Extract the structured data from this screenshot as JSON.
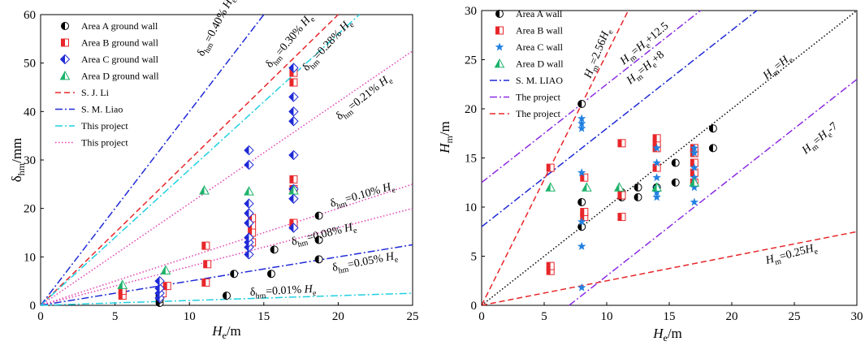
{
  "chart_data": [
    {
      "type": "scatter",
      "xlim": [
        0,
        25
      ],
      "ylim": [
        0,
        60
      ],
      "xticks": [
        0,
        5,
        10,
        15,
        20,
        25
      ],
      "yticks": [
        0,
        10,
        20,
        30,
        40,
        50,
        60
      ],
      "xlabel": {
        "main": "H",
        "sub": "e",
        "suffix": "/m"
      },
      "ylabel": {
        "main": "δ",
        "sub": "hm",
        "suffix": "/mm"
      },
      "series": [
        {
          "name": "Area A ground wall",
          "marker": "halfcircle",
          "color": "#000000",
          "points": [
            [
              8,
              0.5
            ],
            [
              8,
              1.2
            ],
            [
              8,
              2
            ],
            [
              12.5,
              2
            ],
            [
              13,
              6.5
            ],
            [
              15.5,
              6.5
            ],
            [
              15.7,
              11.5
            ],
            [
              18.7,
              9.5
            ],
            [
              18.7,
              13.5
            ],
            [
              18.7,
              18.5
            ]
          ]
        },
        {
          "name": "Area B ground wall",
          "marker": "halfsquare",
          "color": "#e8262a",
          "points": [
            [
              5.5,
              2
            ],
            [
              5.5,
              3
            ],
            [
              8.2,
              2.5
            ],
            [
              8.5,
              4
            ],
            [
              11.1,
              4.7
            ],
            [
              11.2,
              8.5
            ],
            [
              11.1,
              12.3
            ],
            [
              14.2,
              13
            ],
            [
              14.2,
              15
            ],
            [
              14.2,
              16.5
            ],
            [
              14.2,
              18
            ],
            [
              17,
              16.5
            ],
            [
              17,
              17
            ],
            [
              17,
              24
            ],
            [
              17,
              26
            ],
            [
              17,
              46
            ],
            [
              17,
              48
            ]
          ]
        },
        {
          "name": "Area C ground wall",
          "marker": "halfdiamond",
          "color": "#1f2ad6",
          "points": [
            [
              8,
              1.5
            ],
            [
              8,
              2.5
            ],
            [
              8,
              3.5
            ],
            [
              8,
              5
            ],
            [
              14,
              10.5
            ],
            [
              14,
              12
            ],
            [
              14,
              13
            ],
            [
              14,
              14
            ],
            [
              14,
              17
            ],
            [
              14,
              19
            ],
            [
              14,
              21
            ],
            [
              14,
              29
            ],
            [
              14,
              32
            ],
            [
              17,
              16
            ],
            [
              17,
              22
            ],
            [
              17,
              24
            ],
            [
              17,
              31
            ],
            [
              17,
              38
            ],
            [
              17,
              40
            ],
            [
              17,
              43
            ],
            [
              17,
              49
            ]
          ]
        },
        {
          "name": "Area D ground wall",
          "marker": "halftriangle",
          "color": "#1db36b",
          "points": [
            [
              5.5,
              4.2
            ],
            [
              8.4,
              7.2
            ],
            [
              11,
              23.7
            ],
            [
              14,
              23.5
            ],
            [
              17,
              23.7
            ]
          ]
        }
      ],
      "lines": [
        {
          "name": "S. J. Li",
          "style": "dashed",
          "color": "#e8262a",
          "slope": 3.0,
          "in_legend": true
        },
        {
          "name": "S. M. Liao",
          "style": "dashdot",
          "color": "#1f2ad6",
          "slope": 4.0,
          "in_legend": true
        },
        {
          "name": "This project",
          "style": "dashdot",
          "color": "#20d0e0",
          "slope": 2.8,
          "in_legend": true
        },
        {
          "name": "This project",
          "style": "dotted",
          "color": "#e040b0",
          "slope": 2.1,
          "in_legend": true
        },
        {
          "name": "",
          "style": "dotted",
          "color": "#e040b0",
          "slope": 1.0,
          "in_legend": false
        },
        {
          "name": "",
          "style": "dotted",
          "color": "#e040b0",
          "slope": 0.8,
          "in_legend": false
        },
        {
          "name": "",
          "style": "dashdot",
          "color": "#1f2ad6",
          "slope": 0.5,
          "in_legend": false
        },
        {
          "name": "",
          "style": "dashdot",
          "color": "#20d0e0",
          "slope": 0.1,
          "in_legend": false
        }
      ],
      "annotations": [
        {
          "pre": "δ",
          "sub": "hm",
          "mid": "=0.40% ",
          "var": "H",
          "vsub": "e",
          "post": ""
        },
        {
          "pre": "δ",
          "sub": "hm",
          "mid": "=0.30% ",
          "var": "H",
          "vsub": "e",
          "post": ""
        },
        {
          "pre": "δ",
          "sub": "hm",
          "mid": "=0.28% ",
          "var": "H",
          "vsub": "e",
          "post": ""
        },
        {
          "pre": "δ",
          "sub": "hm",
          "mid": "=0.21% ",
          "var": "H",
          "vsub": "e",
          "post": ""
        },
        {
          "pre": "δ",
          "sub": "hm",
          "mid": "=0.10% ",
          "var": "H",
          "vsub": "e",
          "post": ""
        },
        {
          "pre": "δ",
          "sub": "hm",
          "mid": "=0.08% ",
          "var": "H",
          "vsub": "e",
          "post": ""
        },
        {
          "pre": "δ",
          "sub": "hm",
          "mid": "=0.05% ",
          "var": "H",
          "vsub": "e",
          "post": ""
        },
        {
          "pre": "δ",
          "sub": "hm",
          "mid": "=0.01% ",
          "var": "H",
          "vsub": "e",
          "post": ""
        }
      ]
    },
    {
      "type": "scatter",
      "xlim": [
        0,
        30
      ],
      "ylim": [
        0,
        30
      ],
      "xticks": [
        0,
        5,
        10,
        15,
        20,
        25,
        30
      ],
      "yticks": [
        0,
        5,
        10,
        15,
        20,
        25,
        30
      ],
      "xlabel": {
        "main": "H",
        "sub": "e",
        "suffix": "/m"
      },
      "ylabel": {
        "main": "H",
        "sub": "m",
        "suffix": "/m"
      },
      "series": [
        {
          "name": "Area A wall",
          "marker": "halfcircle",
          "color": "#000000",
          "points": [
            [
              8,
              8
            ],
            [
              8,
              10.5
            ],
            [
              8,
              20.5
            ],
            [
              11.2,
              11
            ],
            [
              11.2,
              11.5
            ],
            [
              12.5,
              11
            ],
            [
              12.5,
              12
            ],
            [
              14,
              12
            ],
            [
              15.5,
              12.5
            ],
            [
              15.5,
              14.5
            ],
            [
              18.5,
              16
            ],
            [
              18.5,
              18
            ]
          ]
        },
        {
          "name": "Area B wall",
          "marker": "halfsquare",
          "color": "#e8262a",
          "points": [
            [
              5.5,
              3.5
            ],
            [
              5.5,
              4
            ],
            [
              5.5,
              14
            ],
            [
              8.2,
              9
            ],
            [
              8.2,
              9.5
            ],
            [
              8.2,
              13
            ],
            [
              11.2,
              9
            ],
            [
              11.2,
              11.2
            ],
            [
              11.2,
              16.5
            ],
            [
              14,
              14
            ],
            [
              14,
              16
            ],
            [
              14,
              16.5
            ],
            [
              14,
              17
            ],
            [
              17,
              12.5
            ],
            [
              17,
              13.5
            ],
            [
              17,
              14.5
            ],
            [
              17,
              15.5
            ],
            [
              17,
              16
            ]
          ]
        },
        {
          "name": "Area C wall",
          "marker": "star",
          "color": "#2280e0",
          "points": [
            [
              8,
              1.8
            ],
            [
              8,
              6
            ],
            [
              8,
              8.5
            ],
            [
              8,
              13.5
            ],
            [
              8,
              18
            ],
            [
              8,
              18.5
            ],
            [
              8,
              19
            ],
            [
              14,
              11
            ],
            [
              14,
              11.5
            ],
            [
              14,
              12
            ],
            [
              14,
              13
            ],
            [
              14,
              14.5
            ],
            [
              14,
              16
            ],
            [
              17,
              10.5
            ],
            [
              17,
              12
            ],
            [
              17,
              13
            ],
            [
              17,
              14
            ],
            [
              17,
              15.5
            ],
            [
              17,
              16
            ]
          ]
        },
        {
          "name": "Area D wall",
          "marker": "halftriangle",
          "color": "#1db36b",
          "points": [
            [
              5.5,
              12
            ],
            [
              8.4,
              12
            ],
            [
              11,
              12
            ],
            [
              14,
              12
            ],
            [
              17,
              12.5
            ]
          ]
        }
      ],
      "lines": [
        {
          "name": "S. M. LIAO",
          "style": "dashdot",
          "color": "#1f2ad6",
          "expr": [
            1,
            8
          ],
          "in_legend": true
        },
        {
          "name": "The project",
          "style": "dashdot",
          "color": "#8a2be2",
          "expr": [
            1,
            12.5
          ],
          "in_legend": true
        },
        {
          "name": "The project",
          "style": "dashed",
          "color": "#e8262a",
          "expr": [
            2.56,
            0
          ],
          "in_legend": true
        },
        {
          "name": "",
          "style": "dashdot",
          "color": "#8a2be2",
          "expr": [
            1,
            -7
          ],
          "in_legend": false
        },
        {
          "name": "",
          "style": "dashed",
          "color": "#e8262a",
          "expr": [
            0.25,
            0
          ],
          "in_legend": false
        },
        {
          "name": "",
          "style": "dotted",
          "color": "#000000",
          "expr": [
            1,
            0
          ],
          "in_legend": false
        }
      ],
      "annotations": [
        {
          "pre": "H",
          "sub": "m",
          "mid": "=2.56",
          "var": "H",
          "vsub": "e",
          "post": ""
        },
        {
          "pre": "H",
          "sub": "m",
          "mid": "=",
          "var": "H",
          "vsub": "e",
          "post": "+12.5"
        },
        {
          "pre": "H",
          "sub": "m",
          "mid": "=",
          "var": "H",
          "vsub": "e",
          "post": "+8"
        },
        {
          "pre": "H",
          "sub": "m",
          "mid": "=",
          "var": "H",
          "vsub": "e",
          "post": ""
        },
        {
          "pre": "H",
          "sub": "m",
          "mid": "=",
          "var": "H",
          "vsub": "e",
          "post": "-7"
        },
        {
          "pre": "H",
          "sub": "m",
          "mid": "=0.25",
          "var": "H",
          "vsub": "e",
          "post": ""
        }
      ]
    }
  ]
}
